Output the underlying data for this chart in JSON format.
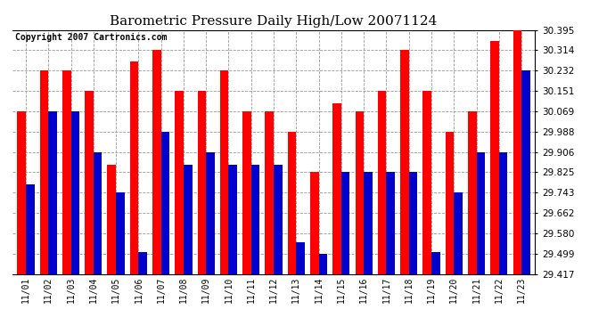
{
  "title": "Barometric Pressure Daily High/Low 20071124",
  "copyright": "Copyright 2007 Cartronics.com",
  "dates": [
    "11/01",
    "11/02",
    "11/03",
    "11/04",
    "11/05",
    "11/06",
    "11/07",
    "11/08",
    "11/09",
    "11/10",
    "11/11",
    "11/12",
    "11/13",
    "11/14",
    "11/15",
    "11/16",
    "11/17",
    "11/18",
    "11/19",
    "11/20",
    "11/21",
    "11/22",
    "11/23"
  ],
  "highs": [
    30.069,
    30.232,
    30.232,
    30.151,
    29.856,
    30.269,
    30.314,
    30.151,
    30.151,
    30.232,
    30.069,
    30.069,
    29.988,
    29.825,
    30.1,
    30.069,
    30.151,
    30.314,
    30.151,
    29.988,
    30.069,
    30.35,
    30.395
  ],
  "lows": [
    29.775,
    30.069,
    30.069,
    29.906,
    29.743,
    29.506,
    29.988,
    29.856,
    29.906,
    29.856,
    29.856,
    29.856,
    29.543,
    29.499,
    29.825,
    29.825,
    29.825,
    29.825,
    29.506,
    29.743,
    29.906,
    29.906,
    30.232
  ],
  "ymin": 29.417,
  "ymax": 30.395,
  "yticks": [
    29.417,
    29.499,
    29.58,
    29.662,
    29.743,
    29.825,
    29.906,
    29.988,
    30.069,
    30.151,
    30.232,
    30.314,
    30.395
  ],
  "high_color": "#ff0000",
  "low_color": "#0000cc",
  "bg_color": "#ffffff",
  "plot_bg_color": "#ffffff",
  "grid_color": "#999999",
  "title_fontsize": 11,
  "copyright_fontsize": 7,
  "bar_width": 0.38
}
